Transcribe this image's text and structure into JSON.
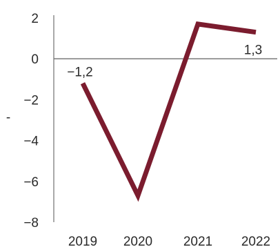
{
  "chart_data": {
    "type": "line",
    "categories": [
      "2019",
      "2020",
      "2021",
      "2022"
    ],
    "series": [
      {
        "values": [
          -1.2,
          -6.7,
          1.7,
          1.3
        ]
      }
    ],
    "data_labels": [
      {
        "index": 0,
        "text": "−1,2"
      },
      {
        "index": 3,
        "text": "1,3"
      }
    ],
    "yticks": [
      {
        "value": 2,
        "label": "2"
      },
      {
        "value": 0,
        "label": "0"
      },
      {
        "value": -2,
        "label": "−2"
      },
      {
        "value": -4,
        "label": "−4"
      },
      {
        "value": -6,
        "label": "−6"
      },
      {
        "value": -8,
        "label": "−8"
      }
    ],
    "ylim": [
      -8,
      2
    ],
    "ylabel": "-",
    "title": "",
    "xlabel": "",
    "grid": false,
    "legend": "none",
    "colors": {
      "series": "#7b1c2e",
      "axis": "#7a7a7a",
      "text": "#2a2a2a"
    }
  }
}
